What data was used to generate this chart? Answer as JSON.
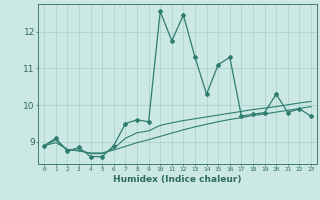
{
  "xlabel": "Humidex (Indice chaleur)",
  "x_values": [
    0,
    1,
    2,
    3,
    4,
    5,
    6,
    7,
    8,
    9,
    10,
    11,
    12,
    13,
    14,
    15,
    16,
    17,
    18,
    19,
    20,
    21,
    22,
    23
  ],
  "line1_y": [
    8.9,
    9.1,
    8.75,
    8.85,
    8.6,
    8.6,
    8.9,
    9.5,
    9.6,
    9.55,
    12.55,
    11.75,
    12.45,
    11.3,
    10.3,
    11.1,
    11.3,
    9.7,
    9.75,
    9.8,
    10.3,
    9.8,
    9.9,
    9.7
  ],
  "line2_y": [
    8.9,
    9.05,
    8.78,
    8.78,
    8.68,
    8.68,
    8.82,
    9.1,
    9.25,
    9.3,
    9.45,
    9.52,
    9.58,
    9.63,
    9.68,
    9.73,
    9.78,
    9.83,
    9.88,
    9.92,
    9.96,
    10.01,
    10.06,
    10.1
  ],
  "line3_y": [
    8.9,
    8.98,
    8.8,
    8.75,
    8.7,
    8.7,
    8.78,
    8.88,
    8.98,
    9.06,
    9.15,
    9.24,
    9.33,
    9.41,
    9.48,
    9.55,
    9.61,
    9.66,
    9.72,
    9.76,
    9.81,
    9.86,
    9.91,
    9.96
  ],
  "line_color": "#2e7d6e",
  "bg_color": "#cce8e4",
  "grid_color": "#aacfcc",
  "axis_color": "#2e6b60",
  "ylim": [
    8.4,
    12.75
  ],
  "yticks": [
    9,
    10,
    11,
    12
  ],
  "xlim": [
    -0.5,
    23.5
  ]
}
